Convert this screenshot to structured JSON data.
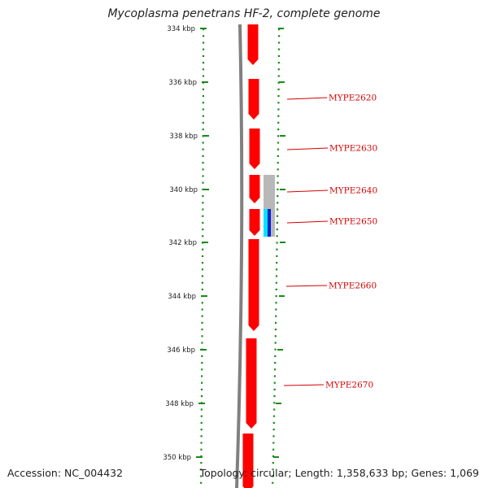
{
  "title": "Mycoplasma penetrans HF-2, complete genome",
  "footer": {
    "accession": "Accession: NC_004432",
    "summary": "Topology: circular; Length: 1,358,633 bp; Genes: 1,069"
  },
  "colors": {
    "backbone": "#808080",
    "gene_forward": "#ff0000",
    "dots": "#1a8a1a",
    "label": "#d40000",
    "feature_gray": "#b8b8b8",
    "feature_cyan": "#00e5ff",
    "feature_blue": "#0022cc"
  },
  "kbp_ticks": [
    "334 kbp",
    "336 kbp",
    "338 kbp",
    "340 kbp",
    "342 kbp",
    "344 kbp",
    "346 kbp",
    "348 kbp",
    "350 kbp"
  ],
  "genes": [
    {
      "label": "MYPE2620"
    },
    {
      "label": "MYPE2630"
    },
    {
      "label": "MYPE2640"
    },
    {
      "label": "MYPE2650"
    },
    {
      "label": "MYPE2660"
    },
    {
      "label": "MYPE2670"
    }
  ]
}
